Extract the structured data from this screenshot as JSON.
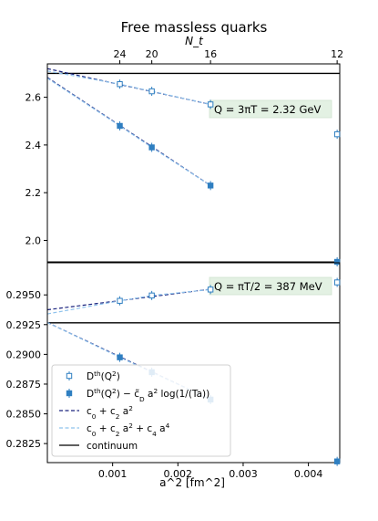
{
  "chart_data": {
    "type": "scatter",
    "title": "Free massless quarks",
    "xlabel": "a^2 [fm^2]",
    "xlim": [
      0.0,
      0.00448
    ],
    "x_ticks": [
      "0.001",
      "0.002",
      "0.003",
      "0.004"
    ],
    "top_axis": {
      "label": "N_t",
      "ticks": [
        {
          "label": "24",
          "x": 0.00111
        },
        {
          "label": "20",
          "x": 0.0016
        },
        {
          "label": "16",
          "x": 0.0025
        },
        {
          "label": "12",
          "x": 0.00444
        }
      ]
    },
    "legend": {
      "placement": "lower-left",
      "entries": [
        {
          "label": "D^th(Q^2)",
          "style": "open-square-errorbar"
        },
        {
          "label": "D^th(Q^2) − c̃_D a^2 log(1/(Ta))",
          "style": "filled-square-errorbar"
        },
        {
          "label": "c_0 + c_2 a^2",
          "style": "dark-dashed"
        },
        {
          "label": "c_0 + c_2 a^2 + c_4 a^4",
          "style": "light-dashed"
        },
        {
          "label": "continuum",
          "style": "black-solid"
        }
      ]
    },
    "panels": [
      {
        "annotation": "Q = 3πT = 2.32 GeV",
        "ylim": [
          1.91,
          2.74
        ],
        "y_ticks": [
          "2.0",
          "2.2",
          "2.4",
          "2.6"
        ],
        "continuum": 2.7,
        "series": [
          {
            "name": "D^th(Q^2)",
            "marker": "open",
            "x": [
              0.00111,
              0.0016,
              0.0025,
              0.00444
            ],
            "y": [
              2.655,
              2.625,
              2.57,
              2.445
            ]
          },
          {
            "name": "D^th(Q^2) − c̃_D a^2 log(1/(Ta))",
            "marker": "filled",
            "x": [
              0.00111,
              0.0016,
              0.0025,
              0.00444
            ],
            "y": [
              2.48,
              2.39,
              2.23,
              1.91
            ]
          }
        ],
        "fits": [
          {
            "name": "c_0 + c_2 a^2",
            "style": "dark",
            "x": [
              0.0,
              0.0025
            ],
            "y": [
              2.72,
              2.57
            ]
          },
          {
            "name": "c_0 + c_2 a^2 + c_4 a^4",
            "style": "light",
            "x": [
              0.0,
              0.00111,
              0.0016,
              0.0025
            ],
            "y": [
              2.71,
              2.655,
              2.625,
              2.57
            ]
          },
          {
            "name": "c_0 + c_2 a^2",
            "style": "dark",
            "x": [
              0.0,
              0.0025
            ],
            "y": [
              2.683,
              2.23
            ]
          },
          {
            "name": "c_0 + c_2 a^2 + c_4 a^4",
            "style": "light",
            "x": [
              0.0,
              0.00111,
              0.0016,
              0.0025
            ],
            "y": [
              2.68,
              2.48,
              2.39,
              2.23
            ]
          }
        ]
      },
      {
        "annotation": "Q = πT/2 = 387 MeV",
        "ylim": [
          0.2809,
          0.2977
        ],
        "y_ticks": [
          "0.2825",
          "0.2850",
          "0.2875",
          "0.2900",
          "0.2925",
          "0.2950"
        ],
        "continuum": 0.29265,
        "series": [
          {
            "name": "D^th(Q^2)",
            "marker": "open",
            "x": [
              0.00111,
              0.0016,
              0.0025,
              0.00444
            ],
            "y": [
              0.2945,
              0.29495,
              0.29545,
              0.29605
            ]
          },
          {
            "name": "D^th(Q^2) − c̃_D a^2 log(1/(Ta))",
            "marker": "filled",
            "x": [
              0.00111,
              0.0016,
              0.0025,
              0.00444
            ],
            "y": [
              0.28975,
              0.2885,
              0.2862,
              0.281
            ]
          }
        ],
        "fits": [
          {
            "name": "c_0 + c_2 a^2",
            "style": "dark",
            "x": [
              0.0,
              0.0025
            ],
            "y": [
              0.29375,
              0.29548
            ]
          },
          {
            "name": "c_0 + c_2 a^2 + c_4 a^4",
            "style": "light",
            "x": [
              0.0,
              0.00111,
              0.0016,
              0.0025
            ],
            "y": [
              0.2934,
              0.2945,
              0.29495,
              0.29545
            ]
          },
          {
            "name": "c_0 + c_2 a^2",
            "style": "dark",
            "x": [
              0.0,
              0.0025
            ],
            "y": [
              0.29268,
              0.2862
            ]
          },
          {
            "name": "c_0 + c_2 a^2 + c_4 a^4",
            "style": "light",
            "x": [
              0.0,
              0.00111,
              0.0016,
              0.0025
            ],
            "y": [
              0.29268,
              0.28975,
              0.2885,
              0.2862
            ]
          }
        ]
      }
    ]
  },
  "colors": {
    "marker": "#2f7fc1",
    "dark_fit": "#1a237e",
    "light_fit": "#8ec2ec",
    "continuum": "#000000",
    "annotation_bg": "#e3f1e3"
  }
}
